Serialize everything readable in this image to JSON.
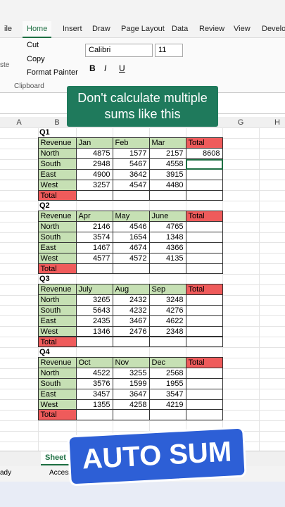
{
  "ribbon": {
    "tabs": [
      "ile",
      "Home",
      "Insert",
      "Draw",
      "Page Layout",
      "Data",
      "Review",
      "View",
      "Develope"
    ],
    "active_tab": 1,
    "clipboard": {
      "paste": "ste",
      "cut": "Cut",
      "copy": "Copy",
      "format_painter": "Format Painter",
      "group_label": "Clipboard"
    },
    "font": {
      "name": "Calibri",
      "size": "11",
      "buttons": [
        "B",
        "I",
        "U"
      ]
    }
  },
  "caption": "Don't calculate multiple sums like this",
  "columns": [
    {
      "label": "A",
      "col": 0
    },
    {
      "label": "B",
      "col": 1
    },
    {
      "label": "G",
      "col": 6
    },
    {
      "label": "H",
      "col": 7
    }
  ],
  "quarters": [
    {
      "label": "Q1",
      "header": [
        "Revenue",
        "Jan",
        "Feb",
        "Mar",
        "Total"
      ],
      "rows": [
        {
          "name": "North",
          "values": [
            4875,
            1577,
            2157
          ],
          "total": 8608
        },
        {
          "name": "South",
          "values": [
            2948,
            5467,
            4558
          ]
        },
        {
          "name": "East",
          "values": [
            4900,
            3642,
            3915
          ]
        },
        {
          "name": "West",
          "values": [
            3257,
            4547,
            4480
          ]
        }
      ],
      "total_label": "Total"
    },
    {
      "label": "Q2",
      "header": [
        "Revenue",
        "Apr",
        "May",
        "June",
        "Total"
      ],
      "rows": [
        {
          "name": "North",
          "values": [
            2146,
            4546,
            4765
          ]
        },
        {
          "name": "South",
          "values": [
            3574,
            1654,
            1348
          ]
        },
        {
          "name": "East",
          "values": [
            1467,
            4674,
            4366
          ]
        },
        {
          "name": "West",
          "values": [
            4577,
            4572,
            4135
          ]
        }
      ],
      "total_label": "Total"
    },
    {
      "label": "Q3",
      "header": [
        "Revenue",
        "July",
        "Aug",
        "Sep",
        "Total"
      ],
      "rows": [
        {
          "name": "North",
          "values": [
            3265,
            2432,
            3248
          ]
        },
        {
          "name": "South",
          "values": [
            5643,
            4232,
            4276
          ]
        },
        {
          "name": "East",
          "values": [
            2435,
            3467,
            4622
          ]
        },
        {
          "name": "West",
          "values": [
            1346,
            2476,
            2348
          ]
        }
      ],
      "total_label": "Total"
    },
    {
      "label": "Q4",
      "header": [
        "Revenue",
        "Oct",
        "Nov",
        "Dec",
        "Total"
      ],
      "rows": [
        {
          "name": "North",
          "values": [
            4522,
            3255,
            2568
          ]
        },
        {
          "name": "South",
          "values": [
            3576,
            1599,
            1955
          ]
        },
        {
          "name": "East",
          "values": [
            3457,
            3647,
            3547
          ]
        },
        {
          "name": "West",
          "values": [
            1355,
            4258,
            4219
          ]
        }
      ],
      "total_label": "Total"
    }
  ],
  "sheet_tab": "Sheet",
  "status": {
    "mode": "ady",
    "accessibility": "Access"
  },
  "banner": "AUTO SUM"
}
